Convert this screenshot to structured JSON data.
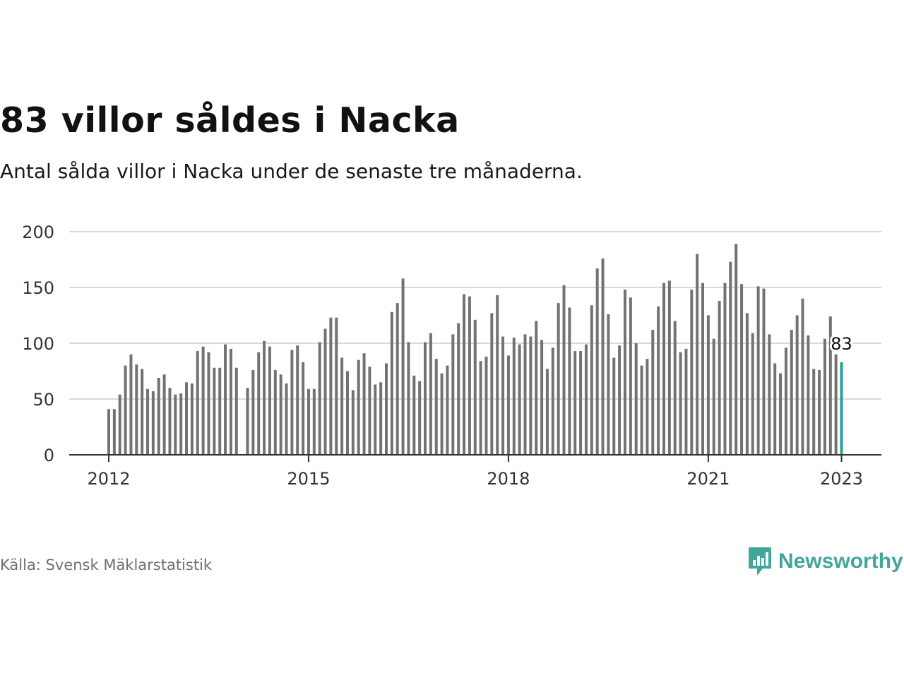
{
  "title": "83 villor såldes i Nacka",
  "subtitle": "Antal sålda villor i Nacka under de senaste tre månaderna.",
  "source": "Källa: Svensk Mäklarstatistik",
  "brand": {
    "name": "Newsworthy",
    "icon": "newsworthy-logo-icon",
    "color": "#44a59a"
  },
  "colors": {
    "bar": "#727272",
    "highlight": "#2aa198",
    "grid": "#d9d9d9",
    "axis": "#333333"
  },
  "chart_data": {
    "type": "bar",
    "title": "83 villor såldes i Nacka",
    "xlabel": "",
    "ylabel": "",
    "ylim": [
      0,
      200
    ],
    "yticks": [
      "0",
      "50",
      "100",
      "150",
      "200"
    ],
    "xticks": [
      "2012",
      "2015",
      "2018",
      "2021",
      "2023"
    ],
    "x_start": "2012-01",
    "frequency": "monthly",
    "grid": true,
    "legend": "none",
    "highlight_label": "83",
    "values": [
      41,
      41,
      54,
      80,
      90,
      81,
      77,
      59,
      57,
      69,
      72,
      60,
      54,
      55,
      65,
      64,
      93,
      97,
      92,
      78,
      78,
      99,
      95,
      78,
      null,
      60,
      76,
      92,
      102,
      97,
      76,
      72,
      64,
      94,
      98,
      83,
      59,
      59,
      101,
      113,
      123,
      123,
      87,
      75,
      58,
      85,
      91,
      79,
      63,
      65,
      82,
      128,
      136,
      158,
      101,
      71,
      66,
      101,
      109,
      86,
      73,
      80,
      108,
      118,
      144,
      142,
      121,
      84,
      88,
      127,
      143,
      106,
      89,
      105,
      99,
      108,
      106,
      120,
      103,
      77,
      96,
      136,
      152,
      132,
      93,
      93,
      99,
      134,
      167,
      176,
      126,
      87,
      98,
      148,
      141,
      100,
      80,
      86,
      112,
      133,
      154,
      156,
      120,
      92,
      95,
      148,
      180,
      154,
      125,
      104,
      138,
      154,
      173,
      189,
      153,
      127,
      109,
      151,
      149,
      108,
      82,
      73,
      96,
      112,
      125,
      140,
      107,
      77,
      76,
      104,
      124,
      90,
      83
    ]
  }
}
